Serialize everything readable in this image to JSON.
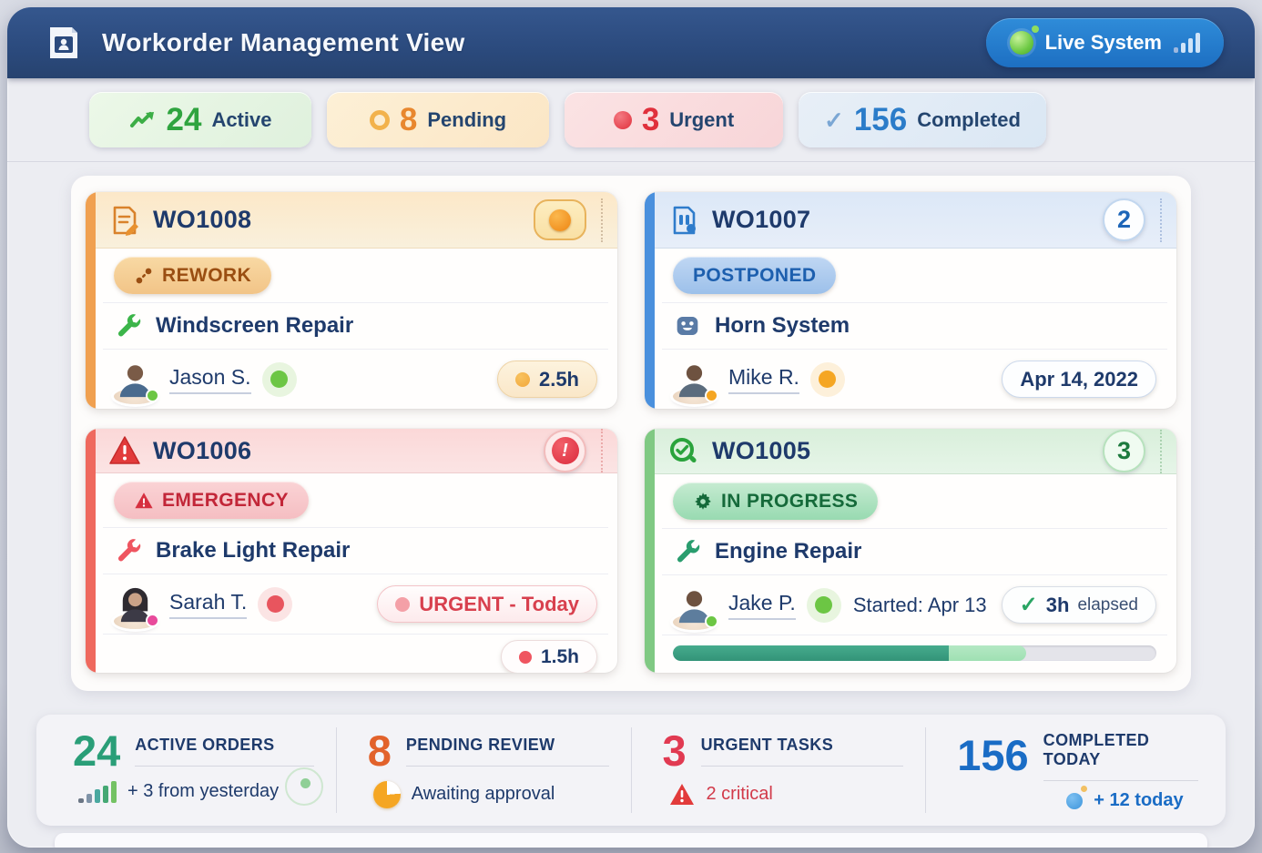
{
  "header": {
    "title": "Workorder Management View",
    "live_label": "Live System"
  },
  "summary_pills": [
    {
      "count": "24",
      "label": "Active"
    },
    {
      "count": "8",
      "label": "Pending"
    },
    {
      "count": "3",
      "label": "Urgent"
    },
    {
      "count": "156",
      "label": "Completed"
    }
  ],
  "cards": [
    {
      "id": "WO1008",
      "badge": "REWORK",
      "task": "Windscreen Repair",
      "assignee": "Jason S.",
      "time": "2.5h"
    },
    {
      "id": "WO1007",
      "corner_count": "2",
      "badge": "POSTPONED",
      "task": "Horn System",
      "assignee": "Mike R.",
      "date": "Apr 14, 2022"
    },
    {
      "id": "WO1006",
      "badge": "EMERGENCY",
      "task": "Brake Light Repair",
      "assignee": "Sarah T.",
      "priority": "URGENT - Today",
      "time": "1.5h"
    },
    {
      "id": "WO1005",
      "corner_count": "3",
      "badge": "IN PROGRESS",
      "task": "Engine Repair",
      "assignee": "Jake P.",
      "started": "Started: Apr 13",
      "elapsed_value": "3h",
      "elapsed_label": "elapsed",
      "progress_dark_pct": 57,
      "progress_light_pct": 16
    }
  ],
  "footer_stats": [
    {
      "value": "24",
      "label": "ACTIVE ORDERS",
      "sub": "+ 3 from yesterday"
    },
    {
      "value": "8",
      "label": "PENDING REVIEW",
      "sub": "Awaiting approval"
    },
    {
      "value": "3",
      "label": "URGENT TASKS",
      "sub": "2 critical"
    },
    {
      "value": "156",
      "label": "COMPLETED TODAY",
      "sub": "+ 12 today"
    }
  ],
  "colors": {
    "navbar": "#2b4a7d",
    "live_button": "#1d6fc2",
    "active_green": "#2fa43f",
    "pending_orange": "#e8872e",
    "urgent_red": "#e0303c",
    "completed_blue": "#2b7cc9",
    "card_amber_accent": "#f0a050",
    "card_blue_accent": "#4a90dd",
    "card_red_accent": "#ef695e",
    "card_green_accent": "#80c983",
    "progress_dark": "#339478",
    "progress_light": "#9fe0b3"
  }
}
